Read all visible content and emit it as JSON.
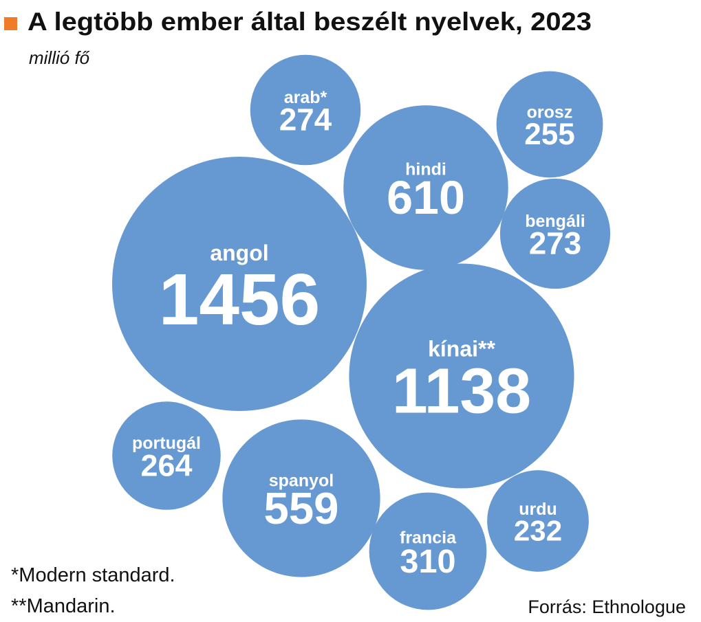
{
  "chart_data": {
    "type": "bubble",
    "title": "A legtöbb ember által beszélt nyelvek, 2023",
    "subtitle": "millió fő",
    "unit": "millió fő",
    "categories": [
      "angol",
      "kínai**",
      "hindi",
      "spanyol",
      "francia",
      "arab*",
      "bengáli",
      "portugál",
      "orosz",
      "urdu"
    ],
    "values": [
      1456,
      1138,
      610,
      559,
      310,
      274,
      273,
      264,
      255,
      232
    ],
    "footnotes": [
      "*Modern standard.",
      "**Mandarin."
    ],
    "source": "Forrás: Ethnologue",
    "colors": {
      "bubble": "#6699d1",
      "accent": "#f07c2a",
      "text": "#111111",
      "bubble_text": "#ffffff"
    }
  }
}
